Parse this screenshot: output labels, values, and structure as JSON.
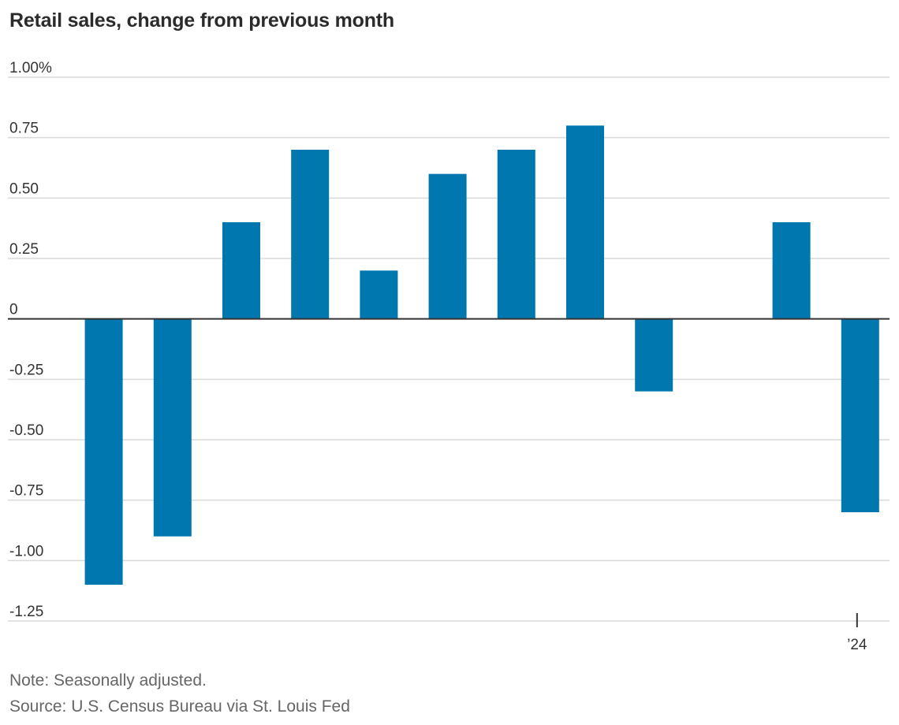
{
  "title": "Retail sales, change from previous month",
  "note": "Note: Seasonally adjusted.",
  "source": "Source: U.S. Census Bureau via St. Louis Fed",
  "colors": {
    "bar": "#0077ae",
    "grid": "#d9d9d9",
    "zero": "#333333",
    "text": "#333333"
  },
  "chart_data": {
    "type": "bar",
    "title": "Retail sales, change from previous month",
    "xlabel": "",
    "ylabel": "",
    "ylim": [
      -1.25,
      1.0
    ],
    "y_ticks": [
      1.0,
      0.75,
      0.5,
      0.25,
      0,
      -0.25,
      -0.5,
      -0.75,
      -1.0,
      -1.25
    ],
    "y_tick_labels": [
      "1.00%",
      "0.75",
      "0.50",
      "0.25",
      "0",
      "-0.25",
      "-0.50",
      "-0.75",
      "-1.00",
      "-1.25"
    ],
    "values": [
      -1.1,
      -0.9,
      0.4,
      0.7,
      0.2,
      0.6,
      0.7,
      0.8,
      -0.3,
      0.0,
      0.4,
      -0.8
    ],
    "x_tick_labels": [
      {
        "index": 11,
        "label": "’24"
      }
    ],
    "grid": true
  }
}
